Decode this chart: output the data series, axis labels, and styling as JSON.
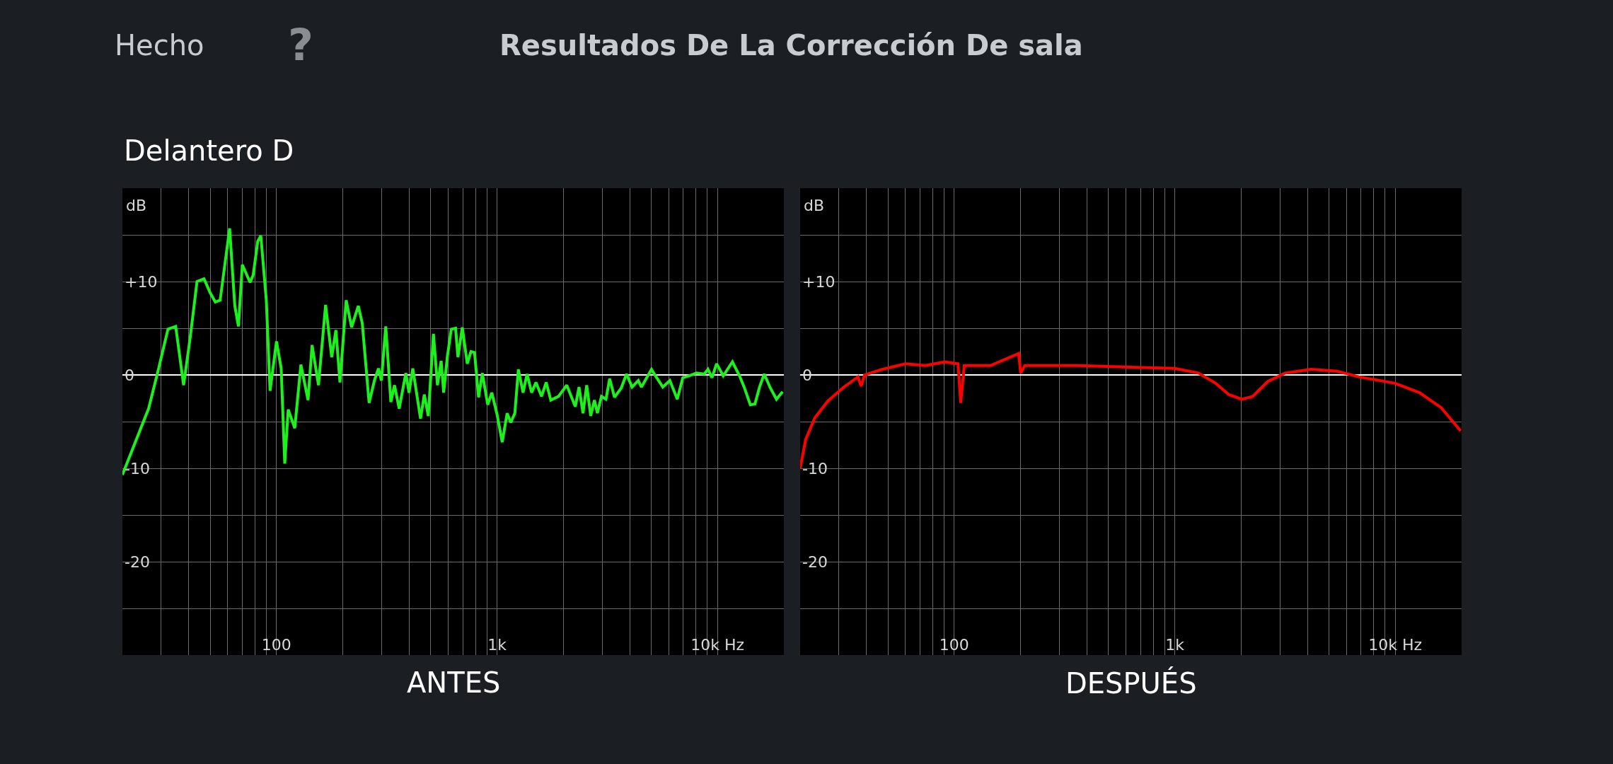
{
  "chart_data": [
    {
      "type": "line",
      "title": "Resultados De La Corrección De sala",
      "subtitle": "Delantero D",
      "annotations": [
        "Hecho",
        "?"
      ],
      "xlabel": "ANTES",
      "ylabel": "dB",
      "log": "x",
      "grid": true,
      "xlim": [
        20,
        20000
      ],
      "ylim": [
        -30,
        20
      ],
      "xticks": [
        {
          "value": 20,
          "label": null
        },
        {
          "value": 30,
          "label": null
        },
        {
          "value": 40,
          "label": null
        },
        {
          "value": 50,
          "label": null
        },
        {
          "value": 60,
          "label": null
        },
        {
          "value": 70,
          "label": null
        },
        {
          "value": 80,
          "label": null
        },
        {
          "value": 90,
          "label": null
        },
        100,
        {
          "value": 200,
          "label": null
        },
        {
          "value": 300,
          "label": null
        },
        {
          "value": 400,
          "label": null
        },
        {
          "value": 500,
          "label": null
        },
        {
          "value": 600,
          "label": null
        },
        {
          "value": 700,
          "label": null
        },
        {
          "value": 800,
          "label": null
        },
        {
          "value": 900,
          "label": null
        },
        {
          "value": 1000,
          "label": "1k"
        },
        {
          "value": 2000,
          "label": null
        },
        {
          "value": 3000,
          "label": null
        },
        {
          "value": 4000,
          "label": null
        },
        {
          "value": 5000,
          "label": null
        },
        {
          "value": 6000,
          "label": null
        },
        {
          "value": 7000,
          "label": null
        },
        {
          "value": 8000,
          "label": null
        },
        {
          "value": 9000,
          "label": null
        },
        {
          "value": 10000,
          "label": "10k Hz"
        },
        {
          "value": 20000,
          "label": null
        }
      ],
      "yticks": [
        {
          "value": 15,
          "label": null
        },
        {
          "value": 10,
          "label": "+10"
        },
        {
          "value": 5,
          "label": null
        },
        0,
        {
          "value": -5,
          "label": null
        },
        -10,
        {
          "value": -15,
          "label": null
        },
        -20,
        {
          "value": -25,
          "label": null
        }
      ],
      "series": [
        {
          "color": "#1ef01e",
          "x": [
            20,
            26.3,
            29,
            32.2,
            34.9,
            37.9,
            40.6,
            43.6,
            46.9,
            50,
            52.8,
            55.5,
            61.3,
            64.7,
            67.2,
            70,
            75.9,
            78.4,
            82.2,
            84.9,
            89.9,
            93.5,
            100,
            105,
            109,
            113,
            121,
            129,
            139,
            145,
            155,
            167,
            178,
            186,
            194,
            207,
            219,
            235,
            245,
            263,
            278,
            290,
            299,
            313,
            330,
            343,
            360,
            386,
            399,
            415,
            450,
            468,
            488,
            515,
            537,
            558,
            573,
            595,
            620,
            649,
            665,
            696,
            733,
            762,
            791,
            825,
            858,
            908,
            947,
            1000,
            1056,
            1112,
            1155,
            1205,
            1250,
            1313,
            1369,
            1436,
            1502,
            1592,
            1671,
            1754,
            1900,
            2072,
            2266,
            2355,
            2455,
            2552,
            2661,
            2766,
            2853,
            2977,
            3121,
            3243,
            3412,
            3661,
            3866,
            4099,
            4374,
            4517,
            5019,
            5300,
            5651,
            6081,
            6571,
            6961,
            7416,
            8035,
            8706,
            9054,
            9442,
            9908,
            10620,
            11690,
            12590,
            13210,
            14090,
            14790,
            15520,
            16290,
            17370,
            18510,
            19740
          ],
          "values": [
            -10.7,
            -3.6,
            0.4,
            4.9,
            5.2,
            -1.1,
            4.0,
            10.0,
            10.3,
            8.8,
            7.8,
            8.0,
            15.7,
            7.4,
            5.2,
            11.8,
            9.9,
            10.7,
            14.3,
            14.9,
            8.0,
            -1.7,
            3.6,
            0.7,
            -9.5,
            -3.7,
            -5.7,
            1.1,
            -2.7,
            3.2,
            -1.1,
            7.5,
            1.9,
            4.8,
            -0.8,
            8.0,
            5.1,
            7.4,
            5.5,
            -3.0,
            -0.6,
            0.7,
            -0.6,
            5.2,
            -2.9,
            -1.1,
            -3.6,
            0.2,
            -1.9,
            0.7,
            -4.7,
            -2.1,
            -4.4,
            4.4,
            -1.1,
            1.5,
            -1.9,
            1.9,
            4.9,
            5.0,
            1.9,
            5.1,
            1.2,
            2.5,
            2.4,
            -2.4,
            0.2,
            -3.2,
            -1.9,
            -4.2,
            -7.2,
            -4.1,
            -5.1,
            -4.1,
            0.6,
            -1.9,
            0.1,
            -1.9,
            -0.8,
            -2.3,
            -0.8,
            -2.7,
            -2.3,
            -1.1,
            -3.4,
            -1.3,
            -4.1,
            -1.1,
            -4.4,
            -2.7,
            -4.1,
            -2.3,
            -2.6,
            -0.4,
            -2.4,
            -1.4,
            0.1,
            -1.3,
            -0.6,
            -1.3,
            0.6,
            -0.3,
            -1.3,
            -0.6,
            -2.6,
            -0.3,
            -0.1,
            0.2,
            0.1,
            0.6,
            -0.3,
            1.2,
            -0.1,
            1.4,
            -0.1,
            -1.3,
            -3.2,
            -3.1,
            -1.3,
            0.1,
            -1.4,
            -2.6,
            -1.8
          ]
        }
      ]
    },
    {
      "type": "line",
      "xlabel": "DESPUÉS",
      "ylabel": "dB",
      "log": "x",
      "grid": true,
      "xlim": [
        20,
        20000
      ],
      "ylim": [
        -30,
        20
      ],
      "xticks": [
        {
          "value": 20,
          "label": null
        },
        {
          "value": 30,
          "label": null
        },
        {
          "value": 40,
          "label": null
        },
        {
          "value": 50,
          "label": null
        },
        {
          "value": 60,
          "label": null
        },
        {
          "value": 70,
          "label": null
        },
        {
          "value": 80,
          "label": null
        },
        {
          "value": 90,
          "label": null
        },
        100,
        {
          "value": 200,
          "label": null
        },
        {
          "value": 300,
          "label": null
        },
        {
          "value": 400,
          "label": null
        },
        {
          "value": 500,
          "label": null
        },
        {
          "value": 600,
          "label": null
        },
        {
          "value": 700,
          "label": null
        },
        {
          "value": 800,
          "label": null
        },
        {
          "value": 900,
          "label": null
        },
        {
          "value": 1000,
          "label": "1k"
        },
        {
          "value": 2000,
          "label": null
        },
        {
          "value": 3000,
          "label": null
        },
        {
          "value": 4000,
          "label": null
        },
        {
          "value": 5000,
          "label": null
        },
        {
          "value": 6000,
          "label": null
        },
        {
          "value": 7000,
          "label": null
        },
        {
          "value": 8000,
          "label": null
        },
        {
          "value": 9000,
          "label": null
        },
        {
          "value": 10000,
          "label": "10k Hz"
        },
        {
          "value": 20000,
          "label": null
        }
      ],
      "yticks": [
        {
          "value": 15,
          "label": null
        },
        {
          "value": 10,
          "label": "+10"
        },
        {
          "value": 5,
          "label": null
        },
        0,
        {
          "value": -5,
          "label": null
        },
        -10,
        {
          "value": -15,
          "label": null
        },
        -20,
        {
          "value": -25,
          "label": null
        }
      ],
      "series": [
        {
          "color": "#ff0000",
          "x": [
            20,
            21.2,
            23.3,
            26.7,
            31.2,
            36.6,
            37.8,
            39.2,
            47,
            60.3,
            73.9,
            90.5,
            104,
            107,
            111,
            146,
            196,
            200,
            209,
            360,
            711,
            1000,
            1280,
            1535,
            1758,
            2014,
            2256,
            2642,
            3165,
            4154,
            5449,
            6834,
            10000,
            12890,
            16150,
            19800
          ],
          "values": [
            -10.0,
            -6.9,
            -4.6,
            -2.8,
            -1.4,
            -0.2,
            -1.2,
            0,
            0.6,
            1.2,
            1.0,
            1.4,
            1.2,
            -3.0,
            1.0,
            1.0,
            2.3,
            0.2,
            1.0,
            1.0,
            0.8,
            0.7,
            0.2,
            -0.9,
            -2.1,
            -2.6,
            -2.3,
            -0.7,
            0.2,
            0.6,
            0.4,
            -0.2,
            -0.9,
            -1.9,
            -3.5,
            -6.0
          ]
        }
      ]
    }
  ]
}
